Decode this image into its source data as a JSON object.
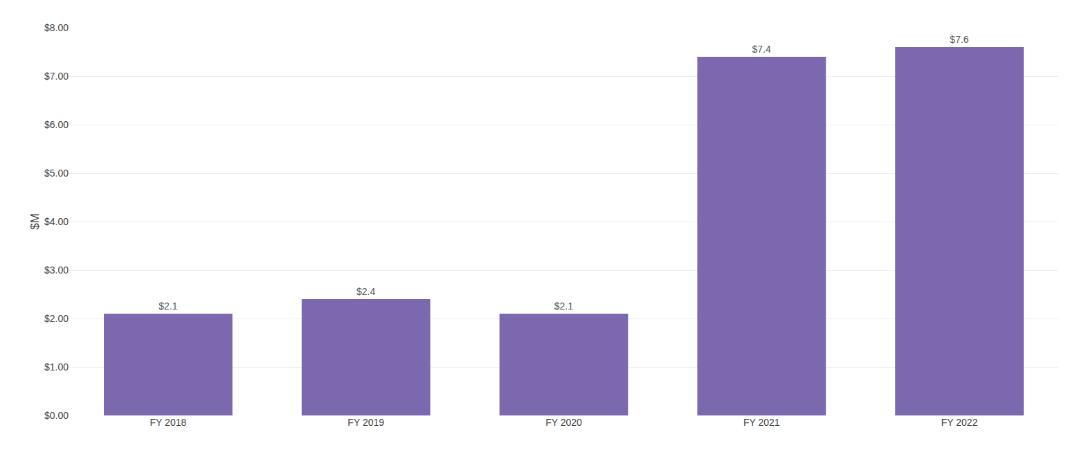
{
  "chart_data": {
    "type": "bar",
    "ylabel": "$M",
    "categories": [
      "FY 2018",
      "FY 2019",
      "FY 2020",
      "FY 2021",
      "FY 2022"
    ],
    "values": [
      2.1,
      2.4,
      2.1,
      7.4,
      7.6
    ],
    "value_labels": [
      "$2.1",
      "$2.4",
      "$2.1",
      "$7.4",
      "$7.6"
    ],
    "data_labels": true,
    "color": "#7B68AE",
    "ylim": [
      0,
      8.0
    ],
    "yticks": [
      {
        "value": 0.0,
        "label": "$0.00"
      },
      {
        "value": 1.0,
        "label": "$1.00"
      },
      {
        "value": 2.0,
        "label": "$2.00"
      },
      {
        "value": 3.0,
        "label": "$3.00"
      },
      {
        "value": 4.0,
        "label": "$4.00"
      },
      {
        "value": 5.0,
        "label": "$5.00"
      },
      {
        "value": 6.0,
        "label": "$6.00"
      },
      {
        "value": 7.0,
        "label": "$7.00"
      },
      {
        "value": 8.0,
        "label": "$8.00"
      }
    ],
    "grid": true
  }
}
